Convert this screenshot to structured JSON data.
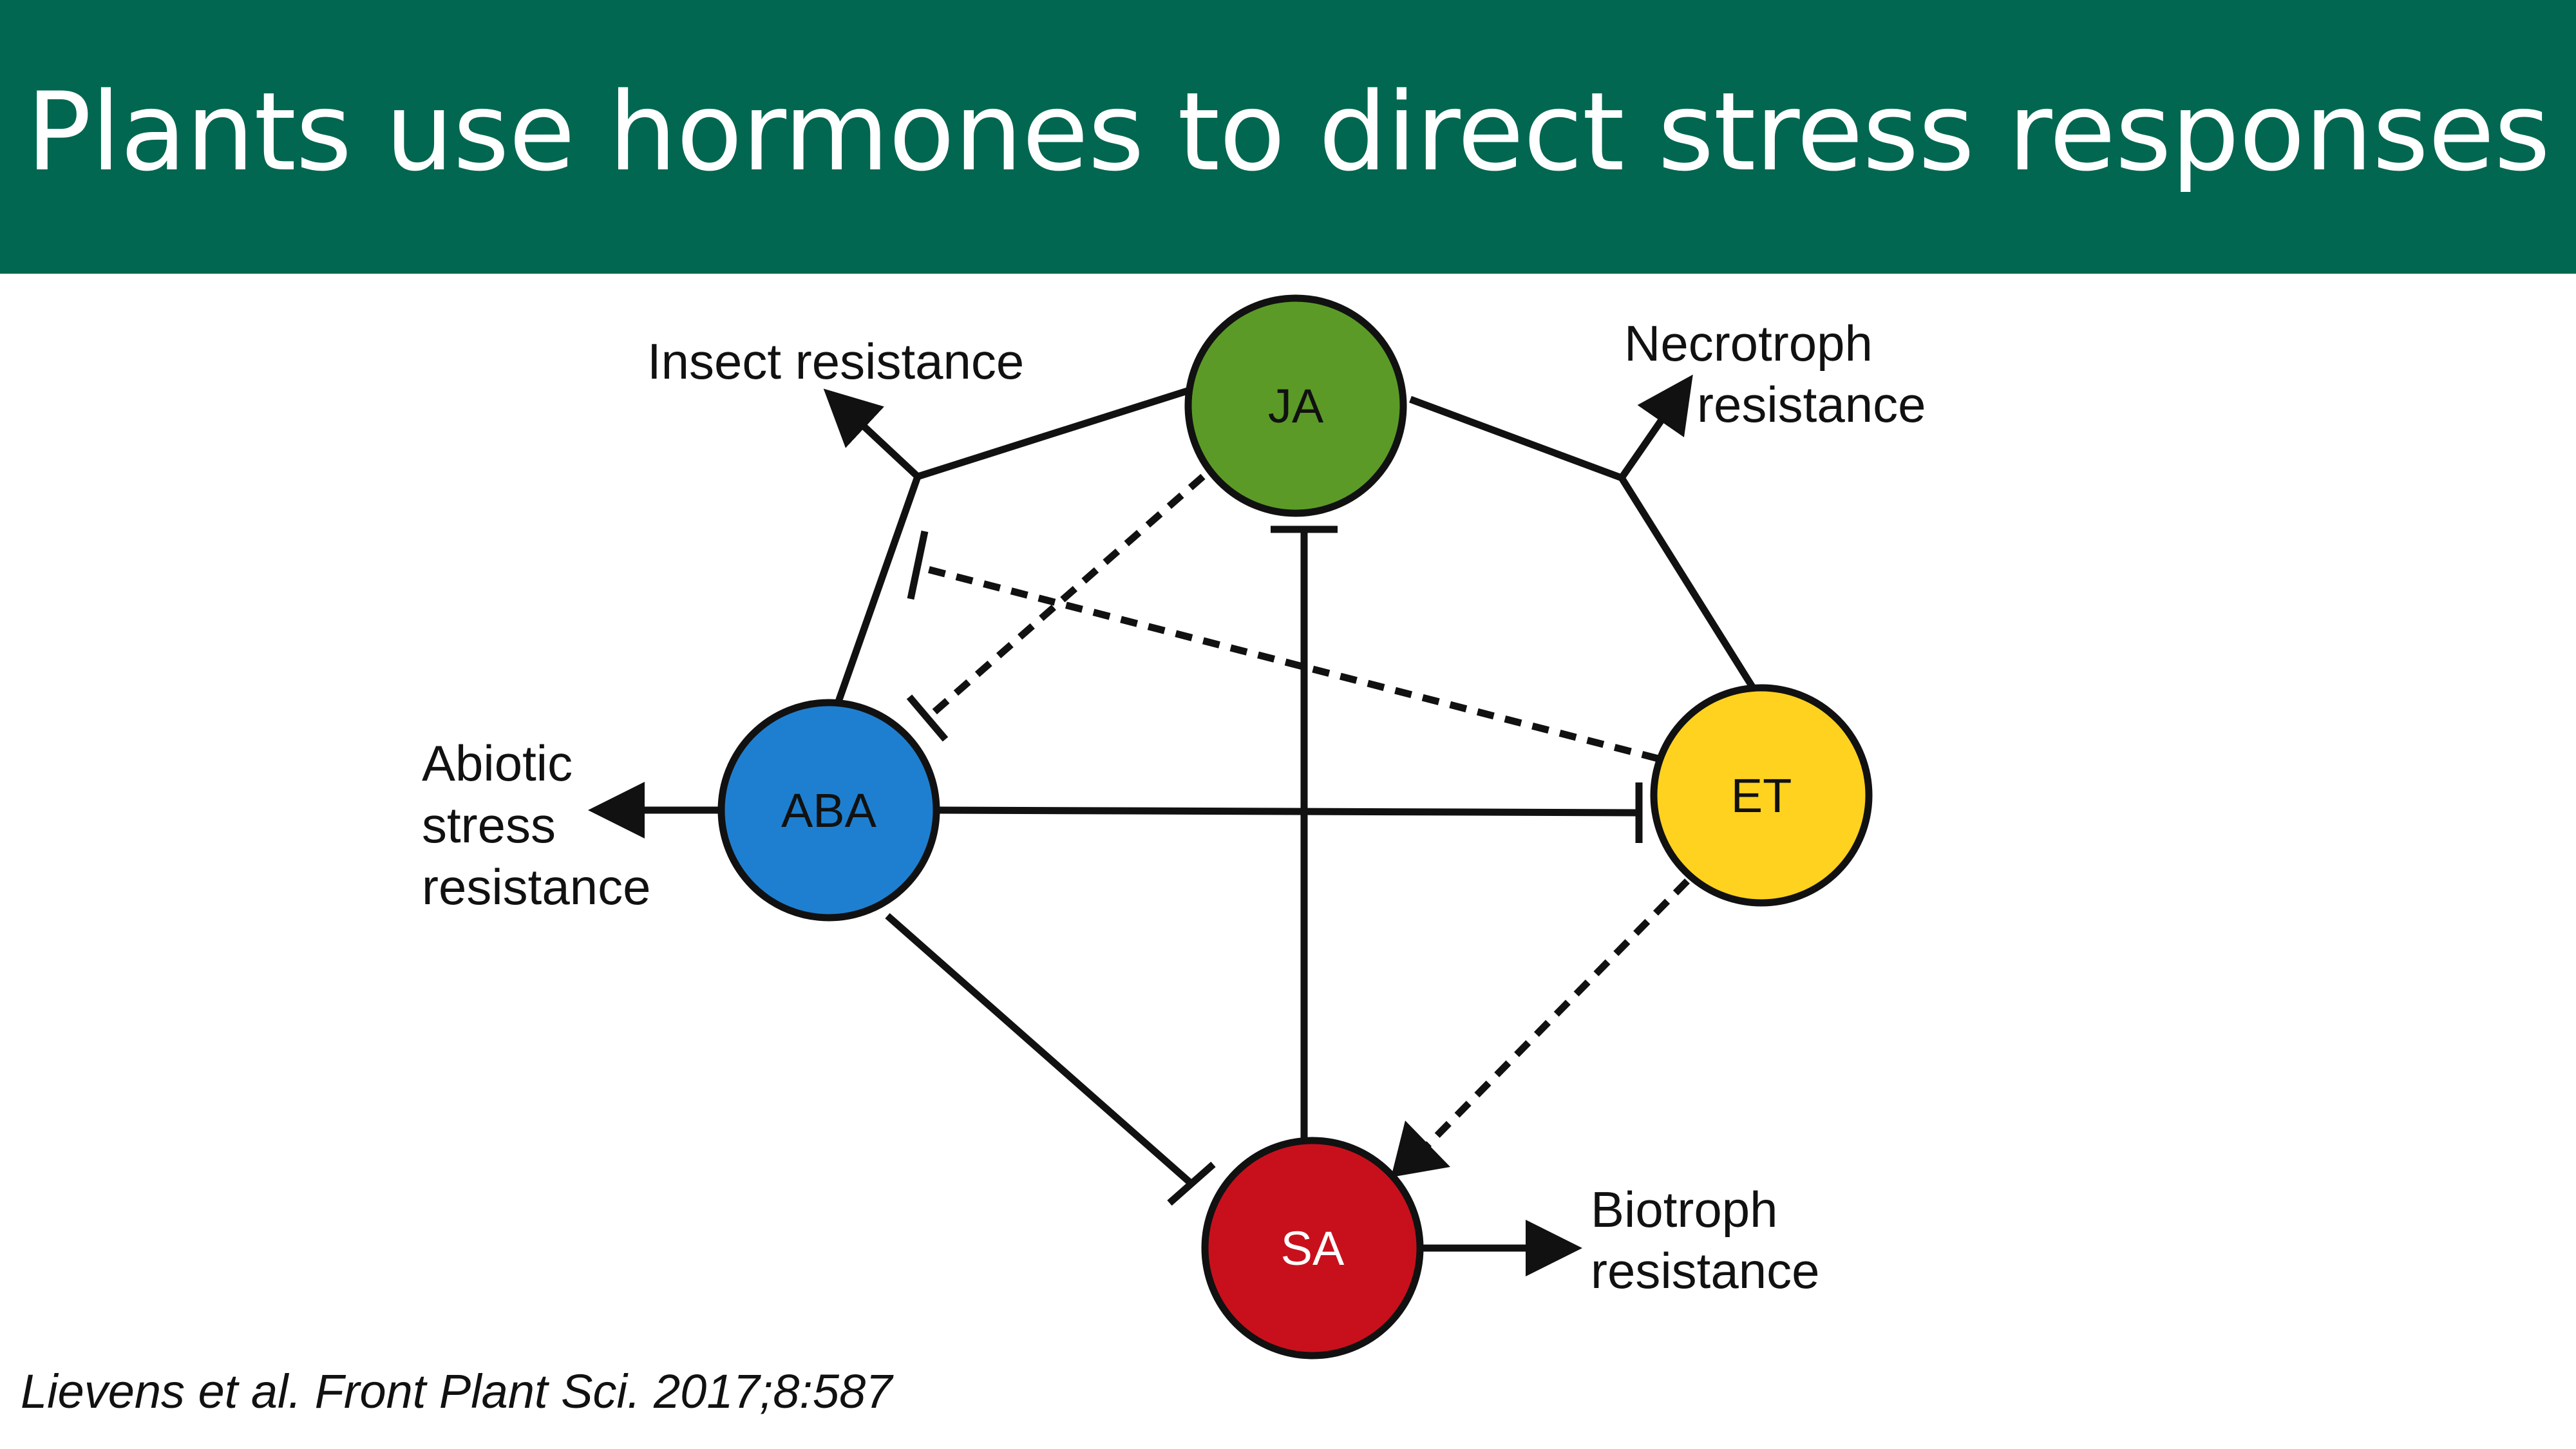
{
  "slide": {
    "title": "Plants use hormones to direct stress responses",
    "citation": "Lievens et al. Front Plant Sci. 2017;8:587",
    "header_color": "#026750"
  },
  "diagram": {
    "nodes": [
      {
        "id": "JA",
        "label": "JA",
        "color": "#5B9A27"
      },
      {
        "id": "ABA",
        "label": "ABA",
        "color": "#1E7FD0"
      },
      {
        "id": "ET",
        "label": "ET",
        "color": "#FFD21F"
      },
      {
        "id": "SA",
        "label": "SA",
        "color": "#C8101C"
      }
    ],
    "outcomes": {
      "insect": [
        "Insect resistance"
      ],
      "necrotroph": [
        "Necrotroph",
        "resistance"
      ],
      "abiotic": [
        "Abiotic",
        "stress",
        "resistance"
      ],
      "biotroph": [
        "Biotroph",
        "resistance"
      ]
    },
    "relations": [
      {
        "from": "JA",
        "to": "Insect resistance",
        "type": "promotes"
      },
      {
        "from": "ABA",
        "to": "Insect resistance",
        "type": "promotes"
      },
      {
        "from": "JA",
        "to": "Necrotroph resistance",
        "type": "promotes"
      },
      {
        "from": "ET",
        "to": "Necrotroph resistance",
        "type": "promotes"
      },
      {
        "from": "ABA",
        "to": "Abiotic stress resistance",
        "type": "promotes"
      },
      {
        "from": "SA",
        "to": "Biotroph resistance",
        "type": "promotes"
      },
      {
        "from": "ABA",
        "to": "ET",
        "type": "inhibits"
      },
      {
        "from": "ABA",
        "to": "SA",
        "type": "inhibits"
      },
      {
        "from": "SA",
        "to": "JA",
        "type": "inhibits"
      },
      {
        "from": "JA",
        "to": "ABA",
        "type": "inhibits",
        "dashed": true
      },
      {
        "from": "ET",
        "to": "Insect resistance",
        "type": "inhibits",
        "dashed": true
      },
      {
        "from": "ET",
        "to": "SA",
        "type": "promotes",
        "dashed": true
      }
    ]
  }
}
